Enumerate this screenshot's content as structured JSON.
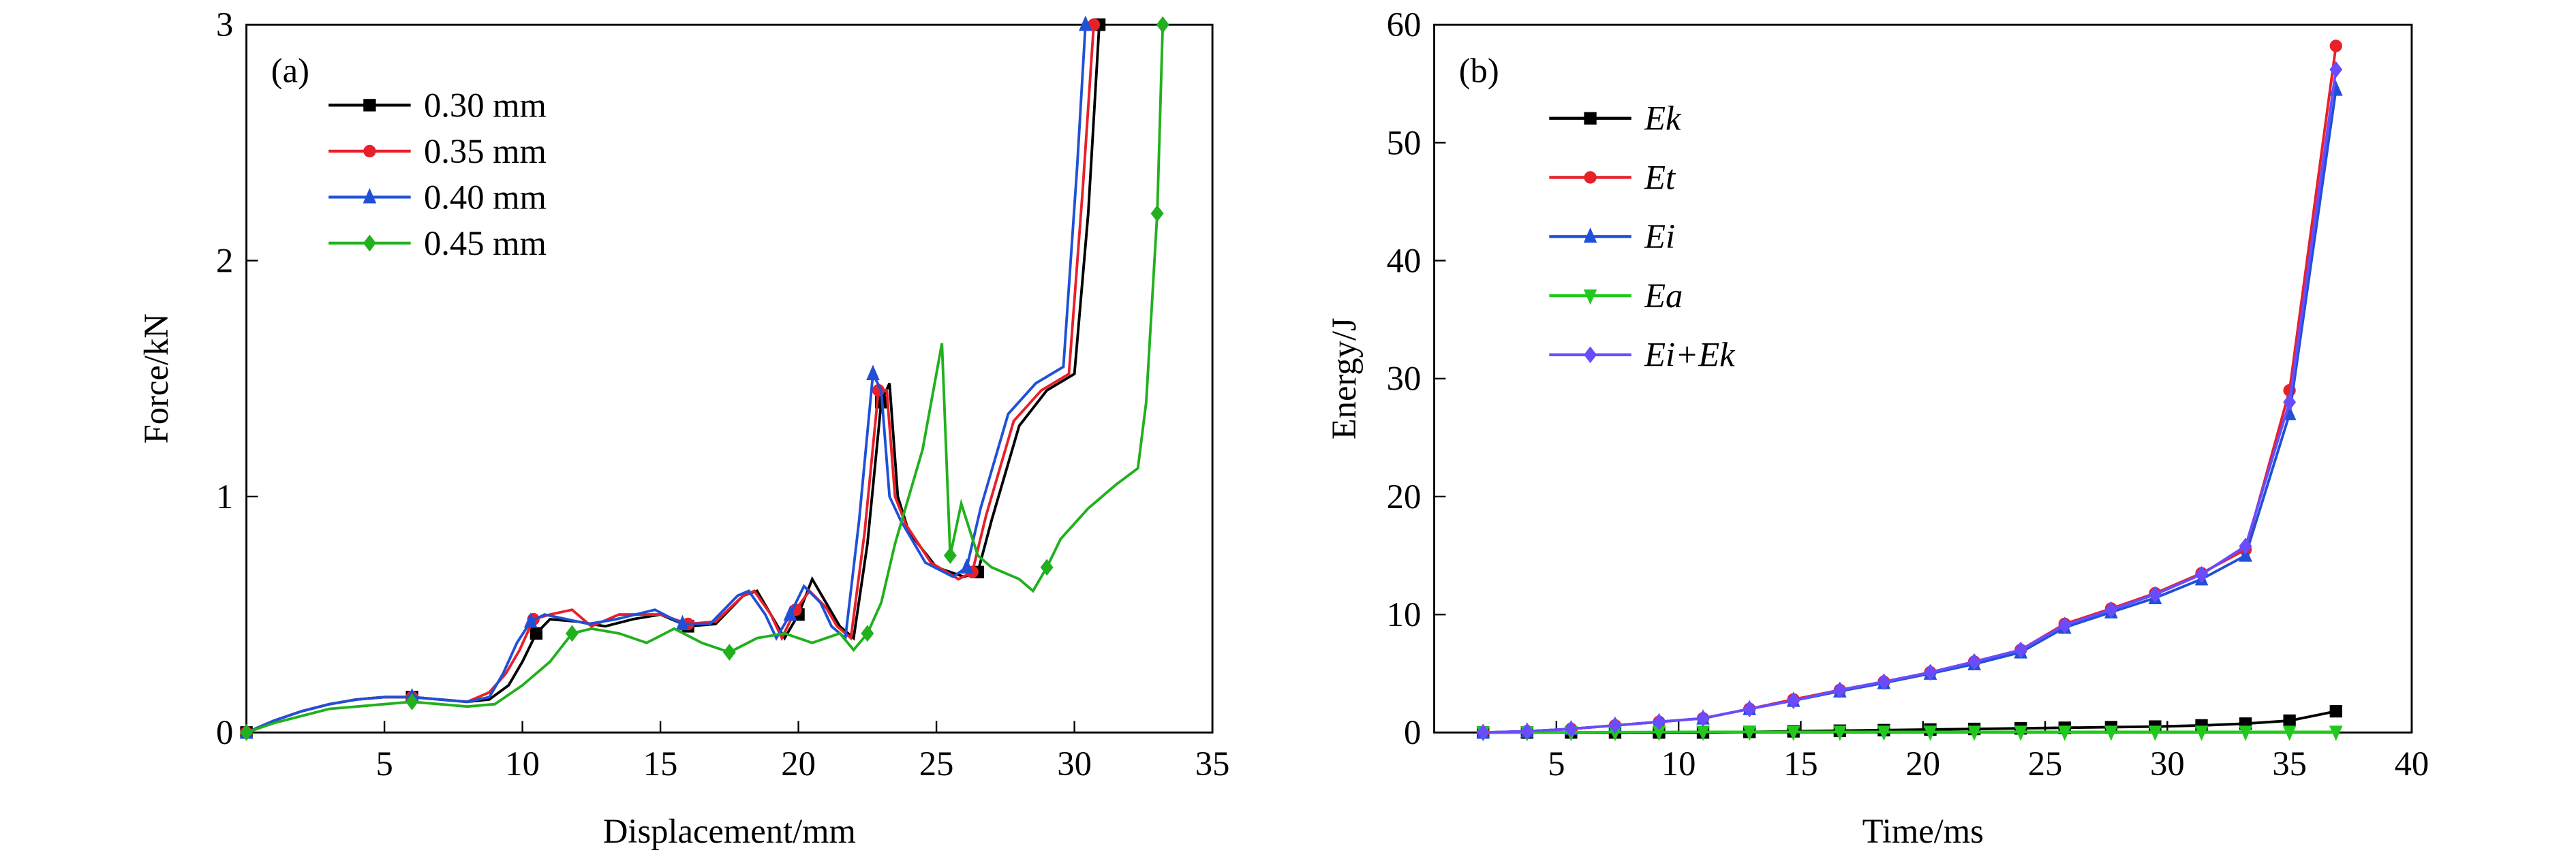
{
  "chart_data": [
    {
      "type": "line",
      "panel_label": "(a)",
      "x_label": "Displacement/mm",
      "y_label": "Force/kN",
      "xlim": [
        0,
        35
      ],
      "xticks": [
        5,
        10,
        15,
        20,
        25,
        30,
        35
      ],
      "ylim": [
        0,
        3
      ],
      "yticks": [
        0,
        1,
        2,
        3
      ],
      "series": [
        {
          "name": "0.30 mm",
          "color": "#000000",
          "marker": "square",
          "x": [
            0,
            1,
            2,
            3,
            4,
            5,
            6,
            7,
            8,
            8.8,
            9.5,
            10,
            10.5,
            11,
            12,
            13,
            14,
            15,
            16,
            17,
            18,
            18.5,
            19,
            19.5,
            20,
            20.5,
            21,
            21.5,
            22,
            22.5,
            23,
            23.3,
            23.6,
            24,
            25,
            26,
            26.5,
            27,
            28,
            29,
            30,
            30.5,
            30.9
          ],
          "values": [
            0,
            0.05,
            0.09,
            0.12,
            0.14,
            0.15,
            0.15,
            0.14,
            0.13,
            0.14,
            0.2,
            0.3,
            0.42,
            0.48,
            0.47,
            0.45,
            0.48,
            0.5,
            0.45,
            0.46,
            0.58,
            0.6,
            0.5,
            0.4,
            0.5,
            0.65,
            0.55,
            0.45,
            0.4,
            0.8,
            1.4,
            1.48,
            1.0,
            0.85,
            0.7,
            0.66,
            0.68,
            0.9,
            1.3,
            1.45,
            1.52,
            2.2,
            3.0
          ]
        },
        {
          "name": "0.35 mm",
          "color": "#e8202a",
          "marker": "circle",
          "x": [
            0,
            1,
            2,
            3,
            4,
            5,
            6,
            7,
            8,
            8.8,
            9.4,
            9.9,
            10.4,
            11,
            11.8,
            12.5,
            13.5,
            15,
            16,
            17,
            18,
            18.4,
            19,
            19.4,
            19.9,
            20.4,
            21,
            21.4,
            21.9,
            22.4,
            22.9,
            23.2,
            23.5,
            23.9,
            24.8,
            25.8,
            26.3,
            26.8,
            27.8,
            28.8,
            29.8,
            30.3,
            30.7
          ],
          "values": [
            0,
            0.05,
            0.09,
            0.12,
            0.14,
            0.15,
            0.15,
            0.14,
            0.13,
            0.17,
            0.25,
            0.35,
            0.48,
            0.5,
            0.52,
            0.45,
            0.5,
            0.5,
            0.46,
            0.47,
            0.58,
            0.6,
            0.5,
            0.4,
            0.52,
            0.6,
            0.53,
            0.45,
            0.4,
            0.85,
            1.45,
            1.45,
            1.0,
            0.88,
            0.72,
            0.65,
            0.68,
            0.92,
            1.32,
            1.45,
            1.52,
            2.3,
            3.0
          ]
        },
        {
          "name": "0.40 mm",
          "color": "#2050d8",
          "marker": "triangle",
          "x": [
            0,
            1,
            2,
            3,
            4,
            5,
            6,
            7,
            8,
            8.8,
            9.3,
            9.8,
            10.3,
            10.8,
            11.6,
            12.4,
            13.4,
            14.8,
            15.8,
            16.8,
            17.8,
            18.2,
            18.8,
            19.2,
            19.7,
            20.2,
            20.8,
            21.2,
            21.7,
            22.2,
            22.7,
            23,
            23.3,
            23.7,
            24.6,
            25.6,
            26.1,
            26.6,
            27.6,
            28.6,
            29.6,
            30.1,
            30.4
          ],
          "values": [
            0,
            0.05,
            0.09,
            0.12,
            0.14,
            0.15,
            0.15,
            0.14,
            0.13,
            0.15,
            0.25,
            0.38,
            0.47,
            0.5,
            0.48,
            0.46,
            0.48,
            0.52,
            0.46,
            0.46,
            0.58,
            0.6,
            0.5,
            0.4,
            0.5,
            0.62,
            0.55,
            0.45,
            0.4,
            0.9,
            1.52,
            1.45,
            1.0,
            0.9,
            0.72,
            0.66,
            0.7,
            0.95,
            1.35,
            1.48,
            1.55,
            2.4,
            3.0
          ]
        },
        {
          "name": "0.45 mm",
          "color": "#22b01e",
          "marker": "diamond",
          "x": [
            0,
            1,
            2,
            3,
            4,
            5,
            6,
            7,
            8,
            9,
            10,
            11,
            11.8,
            12.5,
            13.5,
            14.5,
            15.5,
            16.5,
            17.5,
            18.5,
            19.5,
            20.5,
            21.5,
            22,
            22.5,
            23,
            23.5,
            24,
            24.5,
            25.2,
            25.5,
            25.9,
            26.5,
            27,
            28,
            28.5,
            29,
            29.5,
            30.5,
            31.5,
            32.3,
            32.6,
            33,
            33.2
          ],
          "values": [
            0,
            0.04,
            0.07,
            0.1,
            0.11,
            0.12,
            0.13,
            0.12,
            0.11,
            0.12,
            0.2,
            0.3,
            0.42,
            0.44,
            0.42,
            0.38,
            0.44,
            0.38,
            0.34,
            0.4,
            0.42,
            0.38,
            0.42,
            0.35,
            0.42,
            0.55,
            0.8,
            1.0,
            1.2,
            1.65,
            0.75,
            0.97,
            0.75,
            0.7,
            0.65,
            0.6,
            0.7,
            0.82,
            0.95,
            1.05,
            1.12,
            1.4,
            2.2,
            3.0
          ]
        }
      ]
    },
    {
      "type": "line",
      "panel_label": "(b)",
      "x_label": "Time/ms",
      "y_label": "Energy/J",
      "xlim": [
        0,
        40
      ],
      "xticks": [
        5,
        10,
        15,
        20,
        25,
        30,
        35,
        40
      ],
      "ylim": [
        0,
        60
      ],
      "yticks": [
        0,
        10,
        20,
        30,
        40,
        50,
        60
      ],
      "series": [
        {
          "name": "Ek",
          "color": "#000000",
          "marker": "square",
          "x": [
            2,
            3.8,
            5.6,
            7.4,
            9.2,
            11,
            12.9,
            14.7,
            16.6,
            18.4,
            20.3,
            22.1,
            24,
            25.8,
            27.7,
            29.5,
            31.4,
            33.2,
            35,
            36.9
          ],
          "values": [
            0,
            0,
            0,
            0,
            0,
            0,
            0.05,
            0.1,
            0.15,
            0.2,
            0.25,
            0.3,
            0.35,
            0.4,
            0.45,
            0.5,
            0.6,
            0.75,
            1,
            1.8
          ]
        },
        {
          "name": "Et",
          "color": "#e8202a",
          "marker": "circle",
          "x": [
            2,
            3.8,
            5.6,
            7.4,
            9.2,
            11,
            12.9,
            14.7,
            16.6,
            18.4,
            20.3,
            22.1,
            24,
            25.8,
            27.7,
            29.5,
            31.4,
            33.2,
            35,
            36.9
          ],
          "values": [
            0,
            0.1,
            0.3,
            0.6,
            0.9,
            1.2,
            2,
            2.8,
            3.6,
            4.3,
            5.1,
            6,
            7,
            9.2,
            10.5,
            11.8,
            13.5,
            15.5,
            29,
            58.2
          ]
        },
        {
          "name": "Ei",
          "color": "#2050d8",
          "marker": "triangle",
          "x": [
            2,
            3.8,
            5.6,
            7.4,
            9.2,
            11,
            12.9,
            14.7,
            16.6,
            18.4,
            20.3,
            22.1,
            24,
            25.8,
            27.7,
            29.5,
            31.4,
            33.2,
            35,
            36.9
          ],
          "values": [
            0,
            0.1,
            0.3,
            0.6,
            0.9,
            1.2,
            2,
            2.7,
            3.5,
            4.2,
            5,
            5.8,
            6.8,
            8.9,
            10.2,
            11.4,
            13,
            15,
            27,
            54.5
          ]
        },
        {
          "name": "Ea",
          "color": "#22c81e",
          "marker": "triangle-down",
          "x": [
            2,
            3.8,
            5.6,
            7.4,
            9.2,
            11,
            12.9,
            14.7,
            16.6,
            18.4,
            20.3,
            22.1,
            24,
            25.8,
            27.7,
            29.5,
            31.4,
            33.2,
            35,
            36.9
          ],
          "values": [
            0,
            0,
            0.02,
            0.03,
            0.04,
            0.05,
            0.05,
            0.05,
            0.05,
            0.05,
            0.05,
            0.05,
            0.05,
            0.05,
            0.05,
            0.05,
            0.05,
            0.05,
            0.05,
            0.05
          ]
        },
        {
          "name": "Ei+Ek",
          "color": "#6a4cff",
          "marker": "diamond",
          "x": [
            2,
            3.8,
            5.6,
            7.4,
            9.2,
            11,
            12.9,
            14.7,
            16.6,
            18.4,
            20.3,
            22.1,
            24,
            25.8,
            27.7,
            29.5,
            31.4,
            33.2,
            35,
            36.9
          ],
          "values": [
            0,
            0.1,
            0.3,
            0.6,
            0.9,
            1.2,
            2,
            2.7,
            3.6,
            4.3,
            5.1,
            6,
            7,
            9.1,
            10.4,
            11.7,
            13.4,
            15.8,
            28,
            56.2
          ]
        }
      ]
    }
  ]
}
